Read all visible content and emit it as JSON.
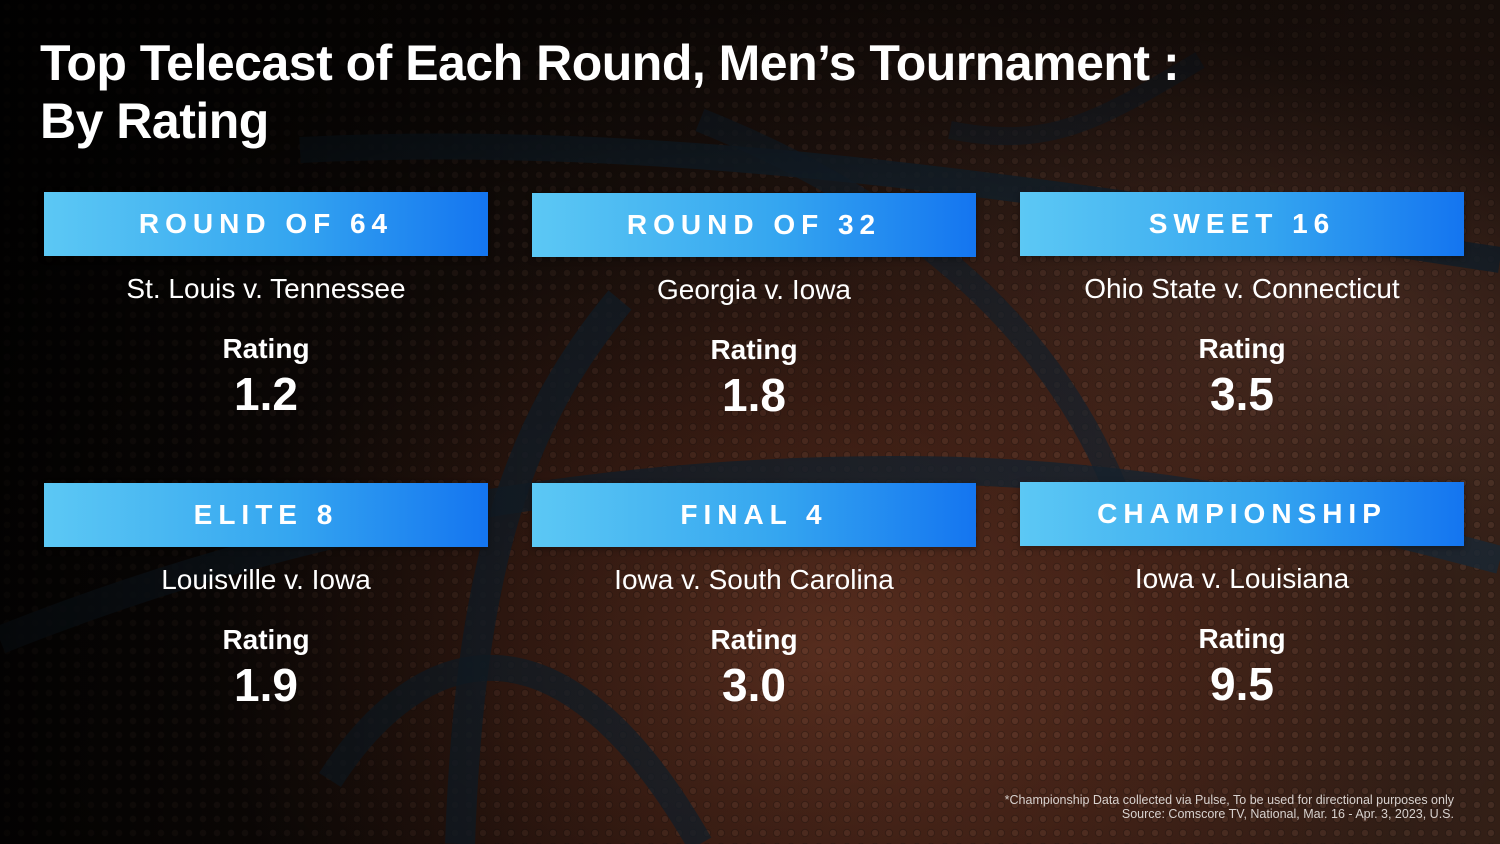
{
  "title": {
    "line1": "Top Telecast of Each Round, Men’s Tournament :",
    "line2": "By Rating"
  },
  "cards": [
    {
      "round": "ROUND OF 64",
      "matchup": "St. Louis v. Tennessee",
      "rating_label": "Rating",
      "rating": "1.2"
    },
    {
      "round": "ROUND OF 32",
      "matchup": "Georgia v. Iowa",
      "rating_label": "Rating",
      "rating": "1.8"
    },
    {
      "round": "SWEET 16",
      "matchup": "Ohio State v. Connecticut",
      "rating_label": "Rating",
      "rating": "3.5"
    },
    {
      "round": "ELITE 8",
      "matchup": "Louisville v. Iowa",
      "rating_label": "Rating",
      "rating": "1.9"
    },
    {
      "round": "FINAL 4",
      "matchup": "Iowa v. South Carolina",
      "rating_label": "Rating",
      "rating": "3.0"
    },
    {
      "round": "CHAMPIONSHIP",
      "matchup": "Iowa v. Louisiana",
      "rating_label": "Rating",
      "rating": "9.5"
    }
  ],
  "footnote": {
    "line1": "*Championship Data collected via Pulse, To be used for directional purposes only",
    "line2": "Source: Comscore TV, National, Mar. 16 - Apr. 3, 2023, U.S."
  },
  "colors": {
    "banner_start": "#5cc8f4",
    "banner_end": "#1475f0",
    "text": "#ffffff"
  }
}
